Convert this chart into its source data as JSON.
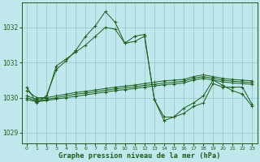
{
  "title": "Graphe pression niveau de la mer (hPa)",
  "background_color": "#c0e8ec",
  "grid_color": "#88c8cc",
  "line_color": "#1a5c1a",
  "xlim": [
    -0.5,
    23.5
  ],
  "ylim": [
    1028.7,
    1032.7
  ],
  "yticks": [
    1029,
    1030,
    1031,
    1032
  ],
  "xticks": [
    0,
    1,
    2,
    3,
    4,
    5,
    6,
    7,
    8,
    9,
    10,
    11,
    12,
    13,
    14,
    15,
    16,
    17,
    18,
    19,
    20,
    21,
    22,
    23
  ],
  "series": [
    {
      "x": [
        0,
        1,
        2,
        3,
        4,
        5,
        6,
        7,
        8,
        9,
        10,
        11,
        12,
        13,
        14,
        15,
        16,
        17,
        18,
        19,
        20,
        21,
        22,
        23
      ],
      "y": [
        1030.3,
        1029.85,
        1030.05,
        1030.8,
        1031.05,
        1031.35,
        1031.75,
        1032.05,
        1032.45,
        1032.15,
        1031.55,
        1031.6,
        1031.75,
        1029.95,
        1029.45,
        1029.45,
        1029.55,
        1029.75,
        1029.85,
        1030.4,
        1030.3,
        1030.3,
        1030.3,
        1029.8
      ]
    },
    {
      "x": [
        0,
        1,
        2,
        3,
        4,
        5,
        6,
        7,
        8,
        9,
        10,
        11,
        12,
        13,
        14,
        15,
        16,
        17,
        18,
        19,
        20,
        21,
        22,
        23
      ],
      "y": [
        1030.2,
        1030.0,
        1030.0,
        1030.9,
        1031.1,
        1031.3,
        1031.5,
        1031.75,
        1032.0,
        1031.95,
        1031.55,
        1031.75,
        1031.8,
        1029.95,
        1029.35,
        1029.45,
        1029.7,
        1029.85,
        1030.05,
        1030.5,
        1030.35,
        1030.2,
        1030.1,
        1029.75
      ]
    },
    {
      "x": [
        0,
        1,
        2,
        3,
        4,
        5,
        6,
        7,
        8,
        9,
        10,
        11,
        12,
        13,
        14,
        15,
        16,
        17,
        18,
        19,
        20,
        21,
        22,
        23
      ],
      "y": [
        1030.05,
        1029.95,
        1030.0,
        1030.05,
        1030.1,
        1030.15,
        1030.18,
        1030.22,
        1030.26,
        1030.3,
        1030.33,
        1030.36,
        1030.4,
        1030.44,
        1030.48,
        1030.5,
        1030.52,
        1030.6,
        1030.65,
        1030.6,
        1030.55,
        1030.52,
        1030.5,
        1030.48
      ]
    },
    {
      "x": [
        0,
        1,
        2,
        3,
        4,
        5,
        6,
        7,
        8,
        9,
        10,
        11,
        12,
        13,
        14,
        15,
        16,
        17,
        18,
        19,
        20,
        21,
        22,
        23
      ],
      "y": [
        1030.0,
        1029.9,
        1029.95,
        1030.0,
        1030.05,
        1030.1,
        1030.13,
        1030.17,
        1030.21,
        1030.25,
        1030.28,
        1030.31,
        1030.35,
        1030.38,
        1030.42,
        1030.44,
        1030.47,
        1030.55,
        1030.6,
        1030.55,
        1030.5,
        1030.47,
        1030.45,
        1030.43
      ]
    },
    {
      "x": [
        0,
        1,
        2,
        3,
        4,
        5,
        6,
        7,
        8,
        9,
        10,
        11,
        12,
        13,
        14,
        15,
        16,
        17,
        18,
        19,
        20,
        21,
        22,
        23
      ],
      "y": [
        1029.95,
        1029.88,
        1029.92,
        1029.96,
        1030.0,
        1030.04,
        1030.08,
        1030.12,
        1030.16,
        1030.2,
        1030.23,
        1030.26,
        1030.3,
        1030.33,
        1030.37,
        1030.39,
        1030.42,
        1030.5,
        1030.55,
        1030.5,
        1030.45,
        1030.42,
        1030.4,
        1030.38
      ]
    }
  ]
}
